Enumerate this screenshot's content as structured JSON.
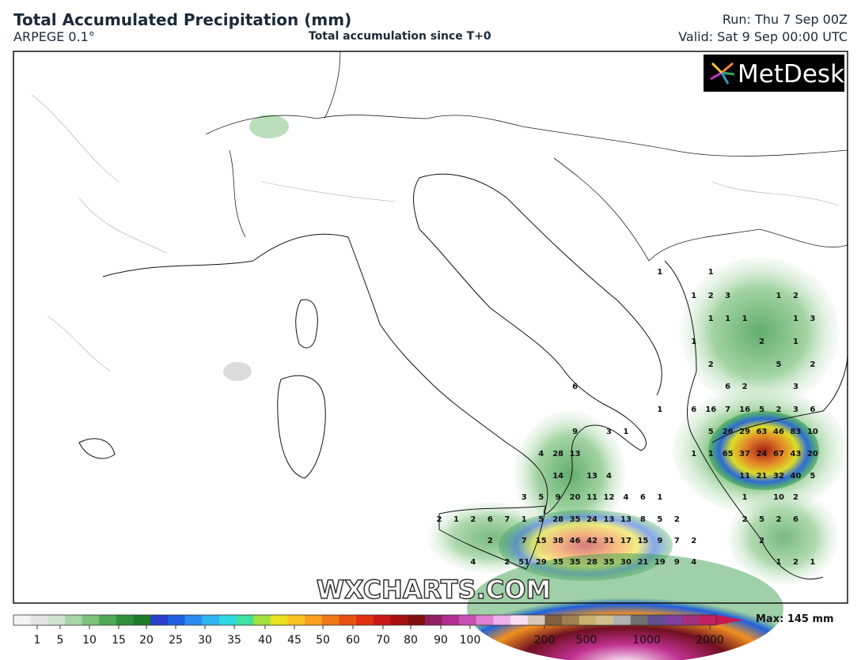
{
  "header": {
    "title": "Total Accumulated Precipitation (mm)",
    "model": "ARPEGE 0.1°",
    "subtitle": "Total accumulation since T+0",
    "run": "Run: Thu 7 Sep 00Z",
    "valid": "Valid: Sat 9 Sep 00:00 UTC"
  },
  "logo": "MetDesk",
  "watermark": "WXCHARTS.COM",
  "map_labels": [
    [
      1,
      1
    ],
    [
      1,
      2,
      3,
      1,
      2
    ],
    [
      1,
      1,
      1,
      1,
      3
    ],
    [
      1,
      2,
      1
    ],
    [
      2,
      5,
      2
    ],
    [
      6,
      6,
      2,
      3
    ],
    [
      1,
      6,
      16,
      7,
      16,
      5,
      2,
      3,
      6
    ],
    [
      9,
      3,
      1,
      5,
      26,
      29,
      63,
      46,
      83,
      10
    ],
    [
      4,
      28,
      13,
      1,
      1,
      65,
      37,
      24,
      67,
      43,
      20
    ],
    [
      14,
      13,
      4,
      11,
      21,
      32,
      40,
      5
    ],
    [
      3,
      5,
      9,
      20,
      11,
      12,
      4,
      6,
      1,
      1,
      10,
      2
    ],
    [
      2,
      1,
      2,
      6,
      7,
      1,
      5,
      28,
      35,
      24,
      13,
      13,
      8,
      5,
      2,
      2,
      5,
      2,
      6
    ],
    [
      2,
      7,
      15,
      38,
      46,
      42,
      31,
      17,
      15,
      9,
      7,
      2,
      2
    ],
    [
      4,
      2,
      51,
      29,
      35,
      35,
      28,
      35,
      30,
      21,
      19,
      9,
      4,
      1,
      2,
      1
    ]
  ],
  "colorbar": {
    "ticks": [
      1,
      5,
      10,
      15,
      20,
      25,
      30,
      35,
      40,
      45,
      50,
      60,
      70,
      80,
      90,
      100,
      200,
      500,
      1000,
      2000
    ],
    "max": "Max: 145 mm"
  }
}
